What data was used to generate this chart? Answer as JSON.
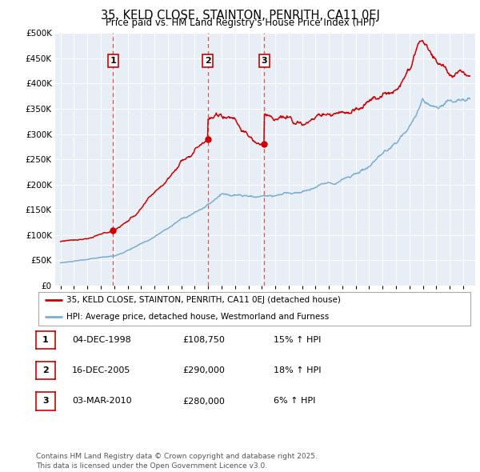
{
  "title": "35, KELD CLOSE, STAINTON, PENRITH, CA11 0EJ",
  "subtitle": "Price paid vs. HM Land Registry's House Price Index (HPI)",
  "background_color": "#e8eef5",
  "plot_bg_color": "#e8eef5",
  "ylim": [
    0,
    500000
  ],
  "yticks": [
    0,
    50000,
    100000,
    150000,
    200000,
    250000,
    300000,
    350000,
    400000,
    450000,
    500000
  ],
  "ytick_labels": [
    "£0",
    "£50K",
    "£100K",
    "£150K",
    "£200K",
    "£250K",
    "£300K",
    "£350K",
    "£400K",
    "£450K",
    "£500K"
  ],
  "sale_dates_num": [
    1998.92,
    2005.96,
    2010.17
  ],
  "sale_prices": [
    108750,
    290000,
    280000
  ],
  "sale_labels": [
    "1",
    "2",
    "3"
  ],
  "sale_info": [
    {
      "label": "1",
      "date": "04-DEC-1998",
      "price": "£108,750",
      "hpi": "15% ↑ HPI"
    },
    {
      "label": "2",
      "date": "16-DEC-2005",
      "price": "£290,000",
      "hpi": "18% ↑ HPI"
    },
    {
      "label": "3",
      "date": "03-MAR-2010",
      "price": "£280,000",
      "hpi": "6% ↑ HPI"
    }
  ],
  "legend_line1": "35, KELD CLOSE, STAINTON, PENRITH, CA11 0EJ (detached house)",
  "legend_line2": "HPI: Average price, detached house, Westmorland and Furness",
  "footnote": "Contains HM Land Registry data © Crown copyright and database right 2025.\nThis data is licensed under the Open Government Licence v3.0.",
  "line_color_red": "#cc0000",
  "line_color_blue": "#7aadd4",
  "dashed_line_color": "#dd4444"
}
